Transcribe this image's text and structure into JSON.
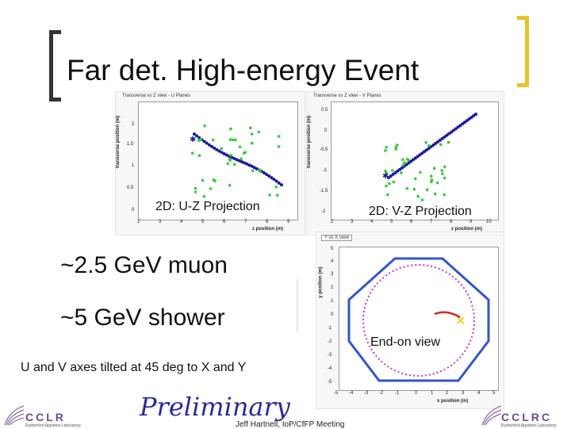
{
  "slide": {
    "title": "Far det. High-energy Event",
    "uz_panel": {
      "plot_title": "Transverse vs Z view - U Planes",
      "y_axis": "transverse position (m)",
      "x_axis": "z position (m)",
      "y_ticks": [
        "2",
        "1.5",
        "1",
        "0.5",
        "0"
      ],
      "x_ticks": [
        "2",
        "3",
        "4",
        "5",
        "6",
        "7",
        "8",
        "9"
      ],
      "label": "2D: U-Z Projection"
    },
    "vz_panel": {
      "plot_title": "Transverse vs Z view - V Planes",
      "y_axis": "transverse position (m)",
      "x_axis": "z position (m)",
      "y_ticks": [
        "0.5",
        "0",
        "-0.5",
        "-1",
        "-1.5",
        "-2"
      ],
      "x_ticks": [
        "2",
        "3",
        "4",
        "5",
        "6",
        "7",
        "8",
        "9",
        "10"
      ],
      "label": "2D: V-Z Projection"
    },
    "yx_panel": {
      "plot_title": "Y vs X view",
      "y_axis": "y position (m)",
      "x_axis": "x position (m)",
      "y_ticks": [
        "5",
        "4",
        "3",
        "2",
        "1",
        "0",
        "-1",
        "-2",
        "-3",
        "-4",
        "-5"
      ],
      "x_ticks": [
        "-5",
        "-4",
        "-3",
        "-2",
        "-1",
        "0",
        "1",
        "2",
        "3",
        "4",
        "5"
      ],
      "label": "End-on view"
    },
    "muon_text": "~2.5 GeV muon",
    "shower_text": "~5 GeV shower",
    "axes_note": "U and V axes tilted at 45 deg to X and Y",
    "preliminary": "Preliminary",
    "footer": "Jeff Hartnell, IoP/CfFP Meeting",
    "logo_left": {
      "name": "CCLR",
      "sub": "Rutherford Appleton Laboratory"
    },
    "logo_right": {
      "name": "CCLRC",
      "sub": "Rutherford Appleton Laboratory"
    },
    "colors": {
      "bracket": "#e8c22c",
      "muon": "#1a1a9a",
      "shower": "#33cc33",
      "octagon": "#3355cc",
      "circle": "#cc33cc",
      "track": "#dd2222",
      "cross": "#e8d000"
    }
  }
}
